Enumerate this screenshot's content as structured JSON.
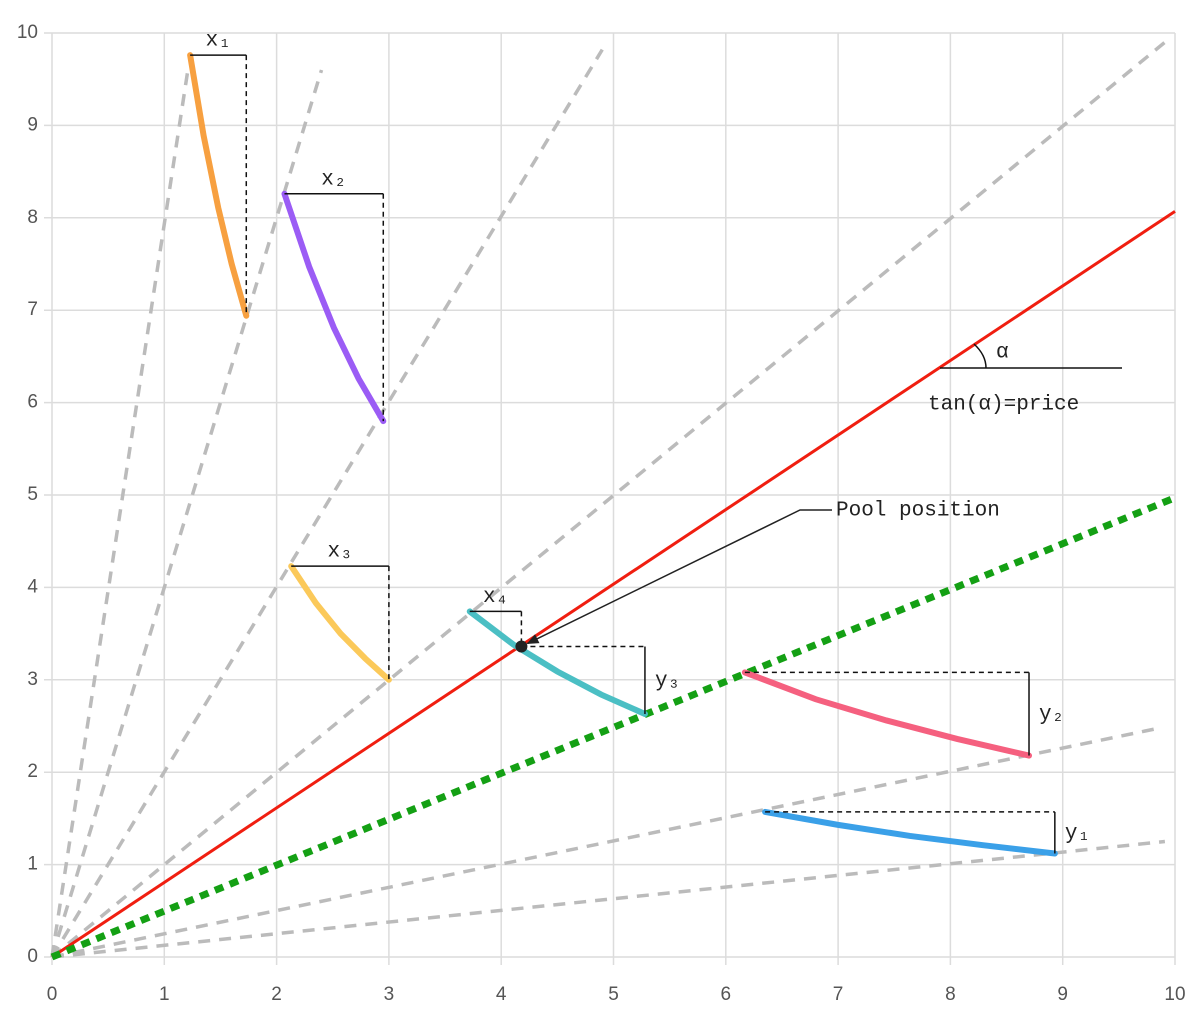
{
  "chart_data": {
    "type": "line",
    "xlim": [
      0,
      10
    ],
    "ylim": [
      0,
      10
    ],
    "xticks": [
      0,
      1,
      2,
      3,
      4,
      5,
      6,
      7,
      8,
      9,
      10
    ],
    "yticks": [
      0,
      1,
      2,
      3,
      4,
      5,
      6,
      7,
      8,
      9,
      10
    ],
    "grid": true,
    "series": [
      {
        "style": "dashed",
        "color": "#bbbbbb",
        "x": [
          0,
          1.21
        ],
        "values": [
          0,
          9.6
        ]
      },
      {
        "style": "dashed",
        "color": "#bbbbbb",
        "x": [
          0,
          2.4
        ],
        "values": [
          0,
          9.6
        ]
      },
      {
        "style": "dashed",
        "color": "#bbbbbb",
        "x": [
          0,
          4.9
        ],
        "values": [
          0,
          9.82
        ]
      },
      {
        "style": "dashed",
        "color": "#bbbbbb",
        "x": [
          0,
          9.91
        ],
        "values": [
          0,
          9.9
        ]
      },
      {
        "style": "dashed",
        "color": "#bbbbbb",
        "x": [
          0,
          9.87
        ],
        "values": [
          0,
          2.48
        ]
      },
      {
        "style": "dashed",
        "color": "#bbbbbb",
        "x": [
          0,
          9.91
        ],
        "values": [
          0,
          1.25
        ]
      },
      {
        "style": "solid",
        "color": "#f01e10",
        "x": [
          0,
          10
        ],
        "values": [
          0,
          8.07
        ]
      },
      {
        "style": "dotted",
        "color": "#14a014",
        "x": [
          0,
          10
        ],
        "values": [
          0,
          4.97
        ]
      },
      {
        "style": "curve",
        "color": "#f7a040",
        "x_label": "x₁",
        "x": [
          1.23,
          1.35,
          1.48,
          1.6,
          1.73
        ],
        "values": [
          9.76,
          8.89,
          8.11,
          7.5,
          6.94
        ]
      },
      {
        "style": "curve",
        "color": "#9b5cf5",
        "x_label": "x₂",
        "x": [
          2.07,
          2.29,
          2.51,
          2.73,
          2.95
        ],
        "values": [
          8.26,
          7.47,
          6.81,
          6.26,
          5.8
        ]
      },
      {
        "style": "curve",
        "color": "#fbc95a",
        "x_label": "x₃",
        "x": [
          2.13,
          2.35,
          2.57,
          2.79,
          3.0
        ],
        "values": [
          4.23,
          3.83,
          3.5,
          3.23,
          3.0
        ]
      },
      {
        "style": "curve",
        "color": "#4bbfc4",
        "x_label": "x₄",
        "y_label": "y₃",
        "x": [
          3.72,
          4.11,
          4.5,
          4.89,
          5.28
        ],
        "values": [
          3.74,
          3.38,
          3.09,
          2.84,
          2.63
        ]
      },
      {
        "style": "curve",
        "color": "#f5607f",
        "y_label": "y₂",
        "x": [
          6.17,
          6.8,
          7.43,
          8.06,
          8.7
        ],
        "values": [
          3.08,
          2.79,
          2.56,
          2.36,
          2.18
        ]
      },
      {
        "style": "curve",
        "color": "#3aa0e8",
        "y_label": "y₁",
        "x": [
          6.35,
          7.0,
          7.64,
          8.29,
          8.93
        ],
        "values": [
          1.57,
          1.43,
          1.31,
          1.21,
          1.12
        ]
      }
    ],
    "pool": {
      "label": "Pool position",
      "x": 4.18,
      "y": 3.36
    },
    "alpha_label": "α",
    "price_label": "tan(α)=price"
  }
}
